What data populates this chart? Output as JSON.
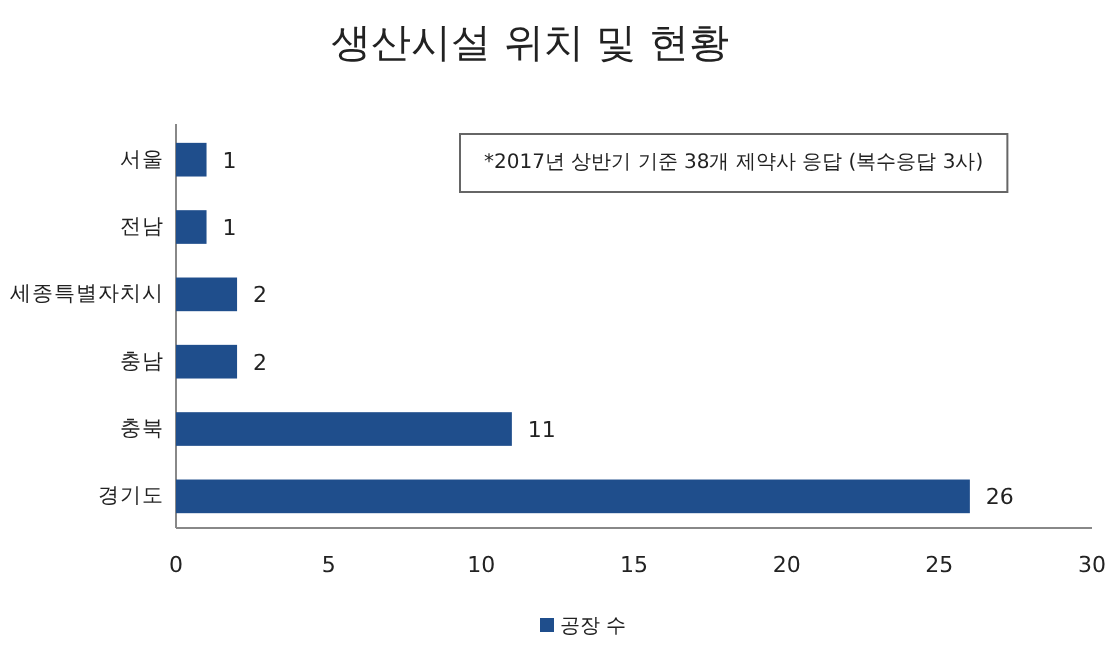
{
  "chart_data": {
    "type": "bar",
    "orientation": "horizontal",
    "title": "생산시설 위치 및 현황",
    "categories": [
      "서울",
      "전남",
      "세종특별자치시",
      "충남",
      "충북",
      "경기도"
    ],
    "series": [
      {
        "name": "공장 수",
        "color": "#1f4e8c",
        "values": [
          1,
          1,
          2,
          2,
          11,
          26
        ]
      }
    ],
    "xlim": [
      0,
      30
    ],
    "xticks": [
      0,
      5,
      10,
      15,
      20,
      25,
      30
    ],
    "data_labels": true,
    "legend": "bottom",
    "grid": false,
    "annotations": [
      "*2017년 상반기  기준  38개 제약사  응답 (복수응답   3사)"
    ]
  }
}
